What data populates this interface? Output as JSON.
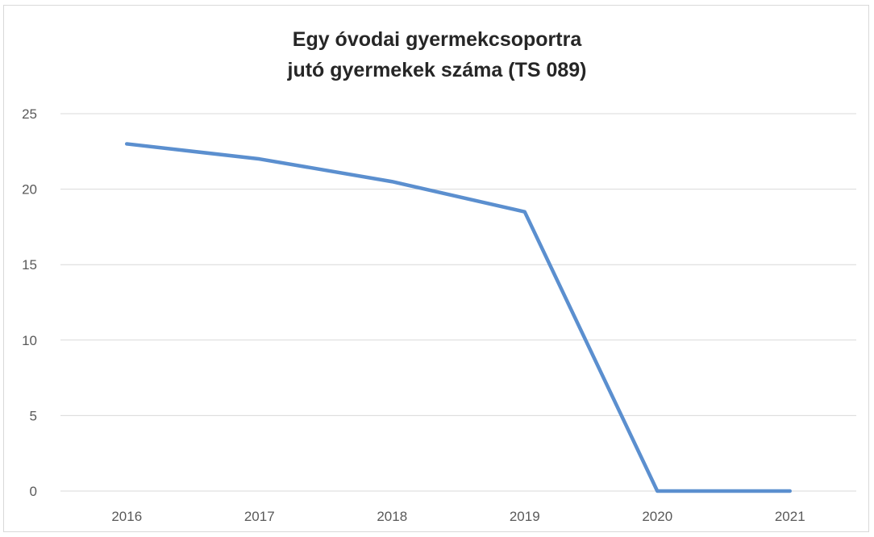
{
  "chart_data": {
    "type": "line",
    "title_lines": [
      "Egy óvodai gyermekcsoportra",
      "jutó gyermekek száma (TS 089)"
    ],
    "categories": [
      "2016",
      "2017",
      "2018",
      "2019",
      "2020",
      "2021"
    ],
    "series": [
      {
        "values": [
          23,
          22,
          20.5,
          18.5,
          0,
          0
        ]
      }
    ],
    "y_ticks": [
      0,
      5,
      10,
      15,
      20,
      25
    ],
    "ylim": [
      0,
      25
    ],
    "xlabel": "",
    "ylabel": "",
    "grid": true,
    "legend": "none",
    "colors": {
      "line": "#5b8fcf",
      "grid": "#d9d9d9",
      "text": "#595959",
      "title": "#262626"
    }
  }
}
